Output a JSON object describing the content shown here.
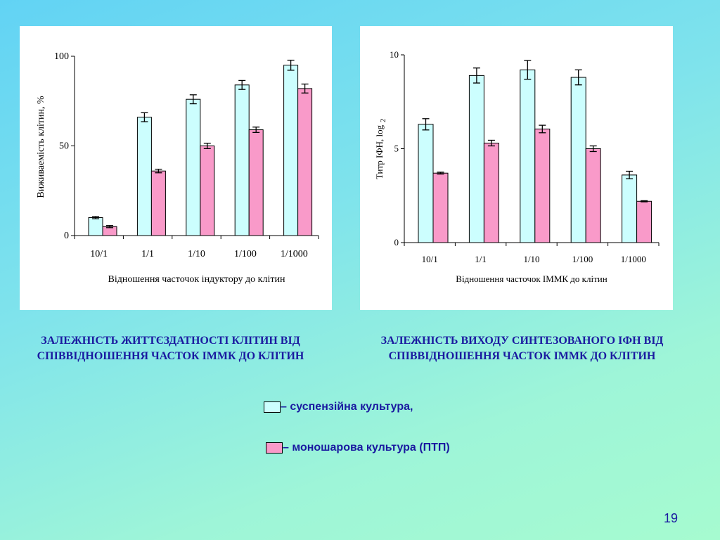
{
  "colors": {
    "suspension": "#ccfefe",
    "monolayer": "#f99ac9",
    "text": "#1a1aa0"
  },
  "chart_data": [
    {
      "type": "bar",
      "categories": [
        "10/1",
        "1/1",
        "1/10",
        "1/100",
        "1/1000"
      ],
      "series": [
        {
          "values": [
            10,
            66,
            76,
            84,
            95
          ],
          "errors": [
            0.6,
            2.5,
            2.5,
            2.5,
            2.8
          ]
        },
        {
          "values": [
            5,
            36,
            50,
            59,
            82
          ],
          "errors": [
            0.6,
            1,
            1.5,
            1.5,
            2.5
          ]
        }
      ],
      "xlabel": "Відношення часточок індуктору до клітин",
      "ylabel": "Виживаемість клітин, %",
      "yticks": [
        "0",
        "50",
        "100"
      ],
      "ylim": [
        0,
        100
      ],
      "grid": false
    },
    {
      "type": "bar",
      "categories": [
        "10/1",
        "1/1",
        "1/10",
        "1/100",
        "1/1000"
      ],
      "series": [
        {
          "values": [
            6.3,
            8.9,
            9.2,
            8.8,
            3.6
          ],
          "errors": [
            0.3,
            0.4,
            0.5,
            0.4,
            0.2
          ]
        },
        {
          "values": [
            3.7,
            5.3,
            6.05,
            5.0,
            2.2
          ],
          "errors": [
            0.05,
            0.15,
            0.2,
            0.15,
            0.03
          ]
        }
      ],
      "xlabel": "Відношення часточок ІММК до клітин",
      "ylabel": "Титр ІФН, log",
      "ylabel_sub": "2",
      "yticks": [
        "0",
        "5",
        "10"
      ],
      "ylim": [
        0,
        10
      ],
      "grid": false
    }
  ],
  "captions": {
    "left": "ЗАЛЕЖНІСТЬ ЖИТТЄЗДАТНОСТІ КЛІТИН ВІД СПІВВІДНОШЕННЯ ЧАСТОК ІММК ДО КЛІТИН",
    "right": "ЗАЛЕЖНІСТЬ ВИХОДУ СИНТЕЗОВАНОГО ІФН ВІД СПІВВІДНОШЕННЯ ЧАСТОК ІММК ДО КЛІТИН"
  },
  "legend": {
    "suspension": "– суспензійна культура,",
    "monolayer": "– моношарова культура (ПТП)"
  },
  "page_number": "19"
}
